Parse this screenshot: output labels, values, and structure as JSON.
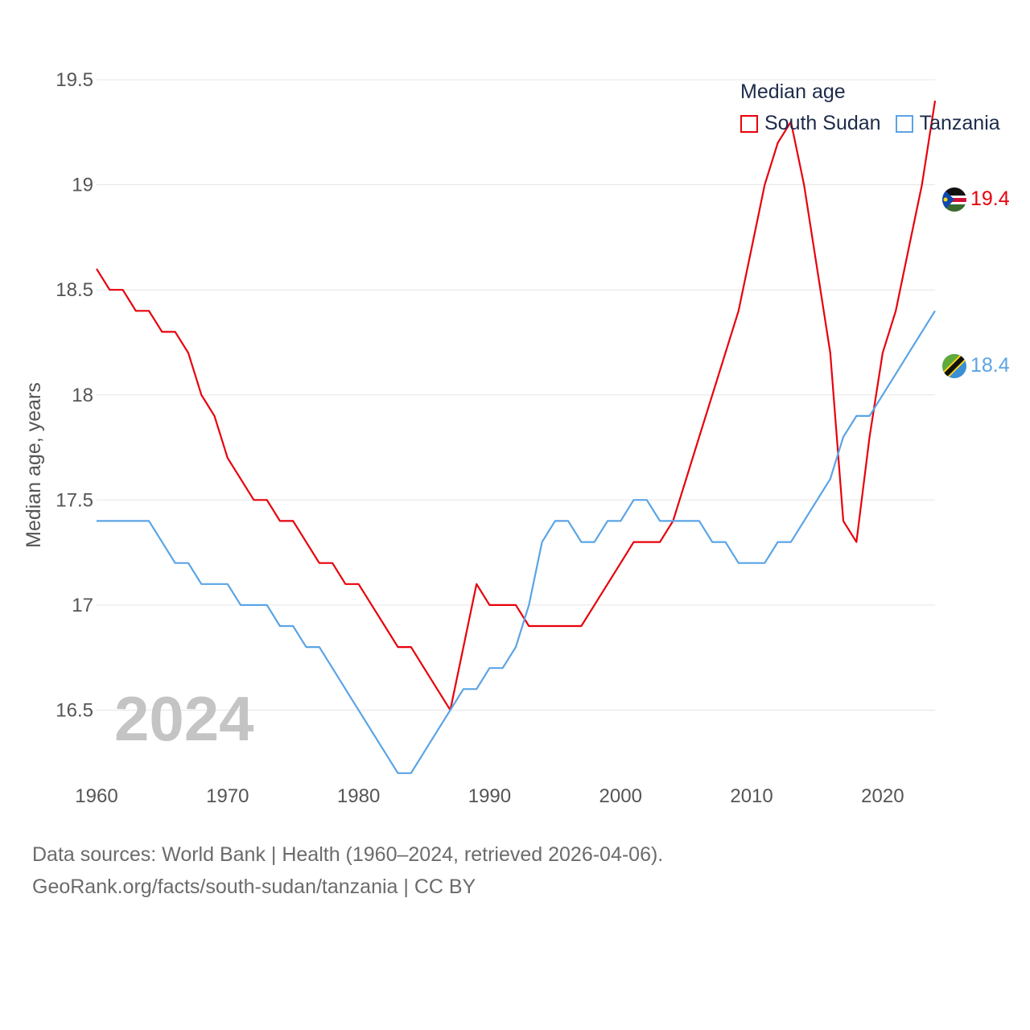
{
  "chart_data": {
    "type": "line",
    "title": "Median age",
    "ylabel": "Median age, years",
    "xlabel": "",
    "xlim": [
      1960,
      2024
    ],
    "ylim": [
      16.0,
      19.6
    ],
    "yticks": [
      16.5,
      17,
      17.5,
      18,
      18.5,
      19,
      19.5
    ],
    "ytick_labels": [
      "16.5",
      "17",
      "17.5",
      "18",
      "18.5",
      "19",
      "19.5"
    ],
    "xticks": [
      1960,
      1970,
      1980,
      1990,
      2000,
      2010,
      2020
    ],
    "xtick_labels": [
      "1960",
      "1970",
      "1980",
      "1990",
      "2000",
      "2010",
      "2020"
    ],
    "year_label": "2024",
    "legend_position": "top-right",
    "series": [
      {
        "name": "South Sudan",
        "color": "#e8000b",
        "end_label": "19.4",
        "x": [
          1960,
          1961,
          1962,
          1963,
          1964,
          1965,
          1966,
          1967,
          1968,
          1969,
          1970,
          1971,
          1972,
          1973,
          1974,
          1975,
          1976,
          1977,
          1978,
          1979,
          1980,
          1981,
          1982,
          1983,
          1984,
          1985,
          1986,
          1987,
          1988,
          1989,
          1990,
          1991,
          1992,
          1993,
          1994,
          1995,
          1996,
          1997,
          1998,
          1999,
          2000,
          2001,
          2002,
          2003,
          2004,
          2005,
          2006,
          2007,
          2008,
          2009,
          2010,
          2011,
          2012,
          2013,
          2014,
          2015,
          2016,
          2017,
          2018,
          2019,
          2020,
          2021,
          2022,
          2023,
          2024
        ],
        "values": [
          18.6,
          18.5,
          18.5,
          18.4,
          18.4,
          18.3,
          18.3,
          18.2,
          18.0,
          17.9,
          17.7,
          17.6,
          17.5,
          17.5,
          17.4,
          17.4,
          17.3,
          17.2,
          17.2,
          17.1,
          17.1,
          17.0,
          16.9,
          16.8,
          16.8,
          16.7,
          16.6,
          16.5,
          16.8,
          17.1,
          17.0,
          17.0,
          17.0,
          16.9,
          16.9,
          16.9,
          16.9,
          16.9,
          17.0,
          17.1,
          17.2,
          17.3,
          17.3,
          17.3,
          17.4,
          17.6,
          17.8,
          18.0,
          18.2,
          18.4,
          18.7,
          19.0,
          19.2,
          19.3,
          19.0,
          18.6,
          18.2,
          17.4,
          17.3,
          17.8,
          18.2,
          18.4,
          18.7,
          19.0,
          19.4
        ]
      },
      {
        "name": "Tanzania",
        "color": "#5ba4e5",
        "end_label": "18.4",
        "x": [
          1960,
          1961,
          1962,
          1963,
          1964,
          1965,
          1966,
          1967,
          1968,
          1969,
          1970,
          1971,
          1972,
          1973,
          1974,
          1975,
          1976,
          1977,
          1978,
          1979,
          1980,
          1981,
          1982,
          1983,
          1984,
          1985,
          1986,
          1987,
          1988,
          1989,
          1990,
          1991,
          1992,
          1993,
          1994,
          1995,
          1996,
          1997,
          1998,
          1999,
          2000,
          2001,
          2002,
          2003,
          2004,
          2005,
          2006,
          2007,
          2008,
          2009,
          2010,
          2011,
          2012,
          2013,
          2014,
          2015,
          2016,
          2017,
          2018,
          2019,
          2020,
          2021,
          2022,
          2023,
          2024
        ],
        "values": [
          17.4,
          17.4,
          17.4,
          17.4,
          17.4,
          17.3,
          17.2,
          17.2,
          17.1,
          17.1,
          17.1,
          17.0,
          17.0,
          17.0,
          16.9,
          16.9,
          16.8,
          16.8,
          16.7,
          16.6,
          16.5,
          16.4,
          16.3,
          16.2,
          16.2,
          16.3,
          16.4,
          16.5,
          16.6,
          16.6,
          16.7,
          16.7,
          16.8,
          17.0,
          17.3,
          17.4,
          17.4,
          17.3,
          17.3,
          17.4,
          17.4,
          17.5,
          17.5,
          17.4,
          17.4,
          17.4,
          17.4,
          17.3,
          17.3,
          17.2,
          17.2,
          17.2,
          17.3,
          17.3,
          17.4,
          17.5,
          17.6,
          17.8,
          17.9,
          17.9,
          18.0,
          18.1,
          18.2,
          18.3,
          18.4
        ]
      }
    ]
  },
  "legend": {
    "title": "Median age",
    "items": [
      {
        "label": "South Sudan",
        "color": "#e8000b"
      },
      {
        "label": "Tanzania",
        "color": "#5ba4e5"
      }
    ]
  },
  "footer": {
    "line1": "Data sources: World Bank | Health (1960–2024, retrieved 2026-04-06).",
    "line2": "GeoRank.org/facts/south-sudan/tanzania | CC BY"
  },
  "flags": {
    "south_sudan": "south-sudan-flag-icon",
    "tanzania": "tanzania-flag-icon"
  }
}
